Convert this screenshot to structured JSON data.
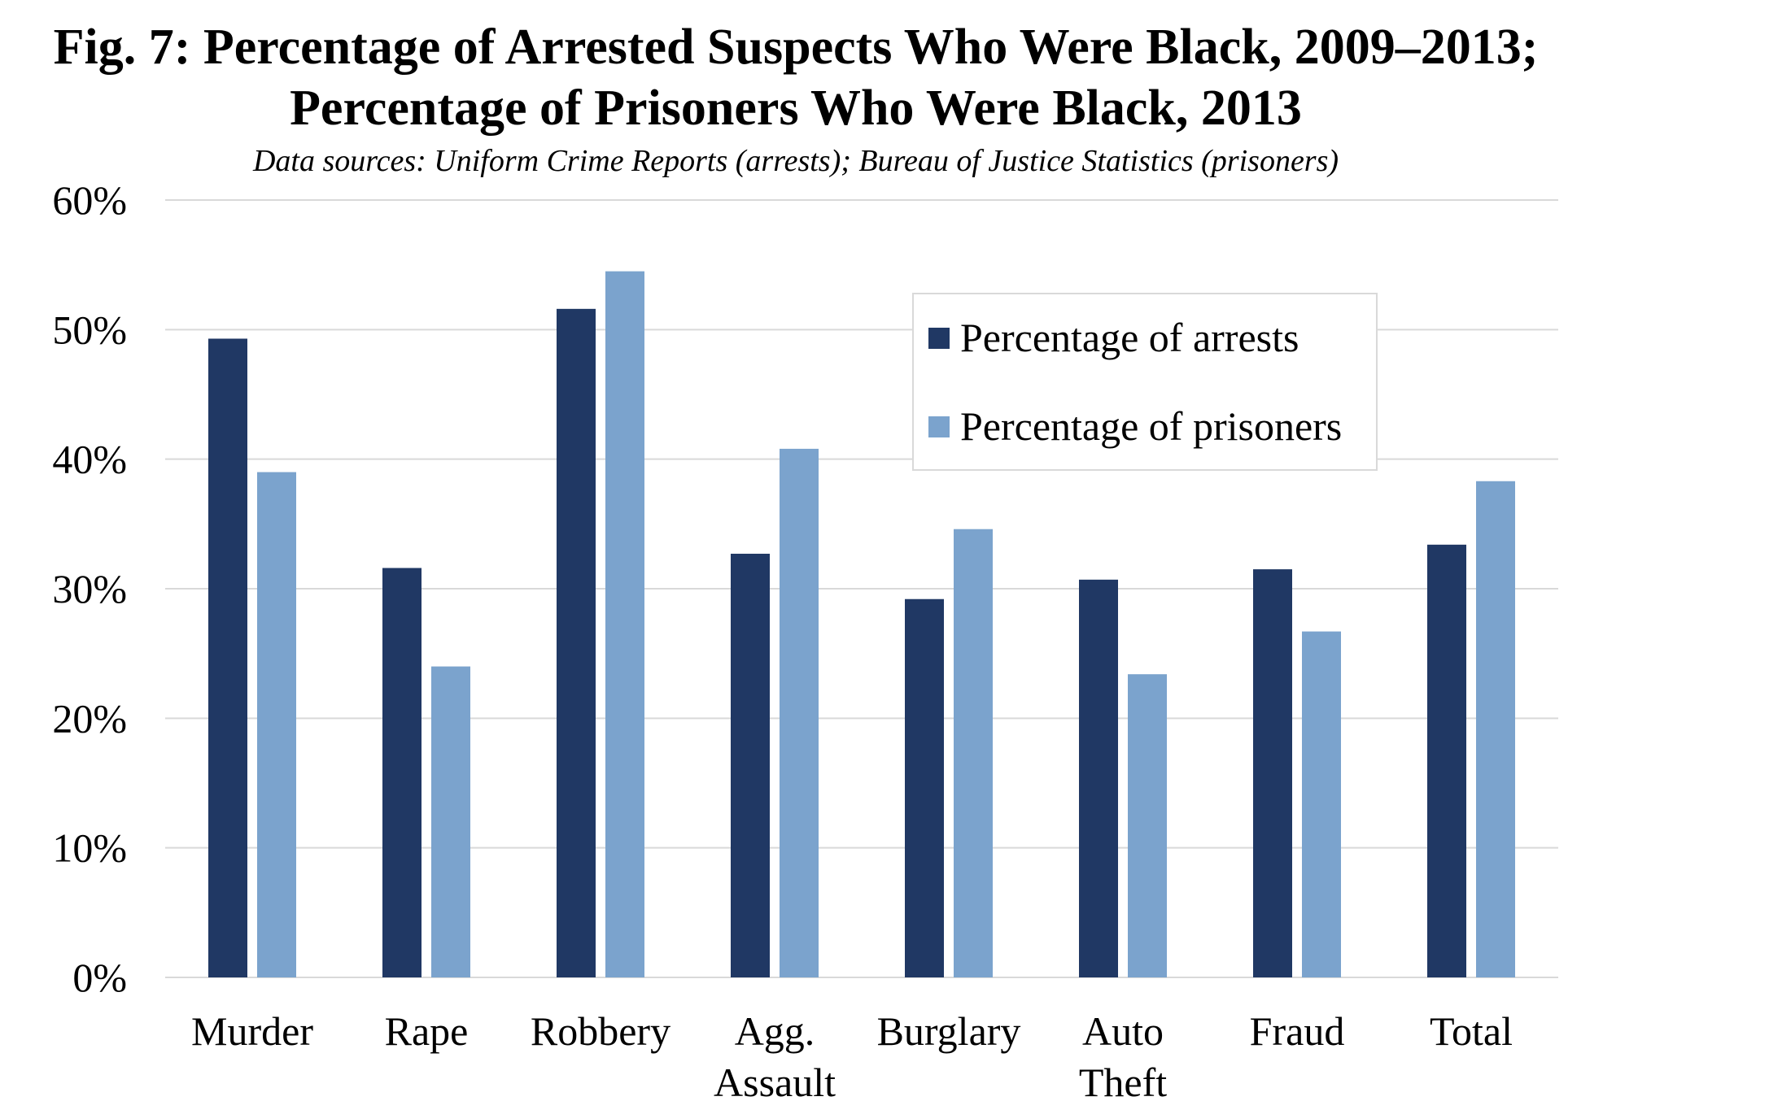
{
  "chart_data": {
    "type": "bar",
    "title_line1": "Fig. 7: Percentage of Arrested Suspects Who Were Black, 2009–2013;",
    "title_line2": "Percentage of Prisoners Who Were Black, 2013",
    "subtitle": "Data sources: Uniform Crime Reports (arrests); Bureau of Justice Statistics (prisoners)",
    "categories": [
      [
        "Murder"
      ],
      [
        "Rape"
      ],
      [
        "Robbery"
      ],
      [
        "Agg.",
        "Assault"
      ],
      [
        "Burglary"
      ],
      [
        "Auto",
        "Theft"
      ],
      [
        "Fraud"
      ],
      [
        "Total"
      ]
    ],
    "series": [
      {
        "name": "Percentage of arrests",
        "color": "#203864",
        "values": [
          49.3,
          31.6,
          51.6,
          32.7,
          29.2,
          30.7,
          31.5,
          33.4
        ]
      },
      {
        "name": "Percentage of prisoners",
        "color": "#7ba3cd",
        "values": [
          39.0,
          24.0,
          54.5,
          40.8,
          34.6,
          23.4,
          26.7,
          38.3
        ]
      }
    ],
    "yticks": [
      "0%",
      "10%",
      "20%",
      "30%",
      "40%",
      "50%",
      "60%"
    ],
    "ylim": [
      0,
      60
    ],
    "grid": true,
    "legend_position": "top-right"
  }
}
